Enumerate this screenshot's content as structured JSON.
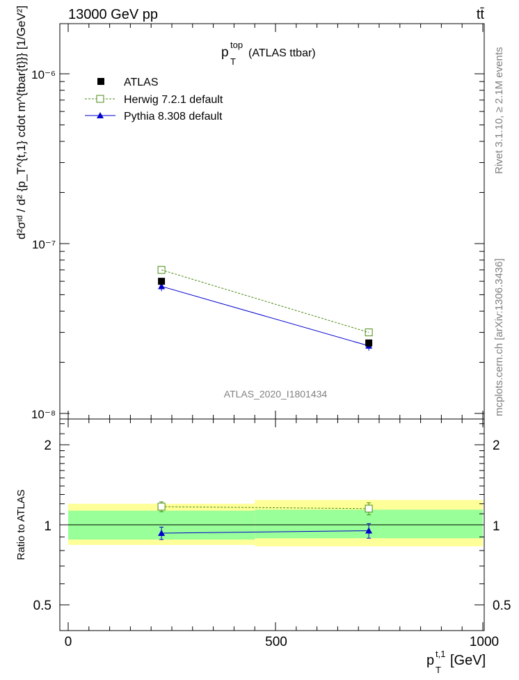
{
  "header": {
    "energy": "13000 GeV pp",
    "process": "tt̄"
  },
  "side_labels": {
    "rivet": "Rivet 3.1.10, ≥ 2.1M events",
    "mcplots": "mcplots.cern.ch [arXiv:1306.3436]"
  },
  "main_plot": {
    "title_main": "p",
    "title_sup": "top",
    "title_sub": "T",
    "title_rest": "(ATLAS ttbar)",
    "analysis_id": "ATLAS_2020_I1801434",
    "ylabel": "d²σᶦᵈ / d² {p_T^{t,1} cdot m^{tbar{t}}} [1/GeV²]",
    "ytick_labels": [
      "10⁻⁸",
      "10⁻⁷",
      "10⁻⁶"
    ]
  },
  "legend": [
    {
      "label": "ATLAS",
      "marker": "filled-square",
      "color": "#000000"
    },
    {
      "label": "Herwig 7.2.1 default",
      "marker": "open-square",
      "color": "#4a8a14"
    },
    {
      "label": "Pythia 8.308 default",
      "marker": "filled-triangle",
      "color": "#0000cc"
    }
  ],
  "ratio_plot": {
    "ylabel": "Ratio to ATLAS",
    "ytick_labels": [
      "0.5",
      "1",
      "2"
    ]
  },
  "x_axis": {
    "label_main": "p",
    "label_sup": "t,1",
    "label_sub": "T",
    "label_unit": "[GeV]",
    "tick_labels": [
      "0",
      "500",
      "1000"
    ]
  },
  "chart_data": {
    "type": "line",
    "x_scale": "linear",
    "xlim": [
      0,
      1000
    ],
    "main_ylim": [
      1e-08,
      2e-06
    ],
    "main_y_scale": "log",
    "ratio_ylim": [
      0.4,
      2.4
    ],
    "ratio_y_scale": "log",
    "bins": [
      [
        0,
        450
      ],
      [
        450,
        1000
      ]
    ],
    "x": [
      225,
      725
    ],
    "series": [
      {
        "name": "ATLAS",
        "values": [
          6e-08,
          2.6e-08
        ]
      },
      {
        "name": "Herwig 7.2.1 default",
        "values": [
          7e-08,
          3e-08
        ],
        "ratio": [
          1.17,
          1.15
        ],
        "ratio_err": [
          0.05,
          0.06
        ]
      },
      {
        "name": "Pythia 8.308 default",
        "values": [
          5.6e-08,
          2.5e-08
        ],
        "ratio": [
          0.93,
          0.95
        ],
        "ratio_err": [
          0.05,
          0.06
        ]
      }
    ],
    "atlas_stat_band": [
      [
        0.88,
        1.13
      ],
      [
        0.89,
        1.14
      ]
    ],
    "atlas_total_band": [
      [
        0.84,
        1.2
      ],
      [
        0.83,
        1.24
      ]
    ],
    "band_colors": {
      "inner": "#99ff99",
      "outer": "#ffff99"
    }
  }
}
